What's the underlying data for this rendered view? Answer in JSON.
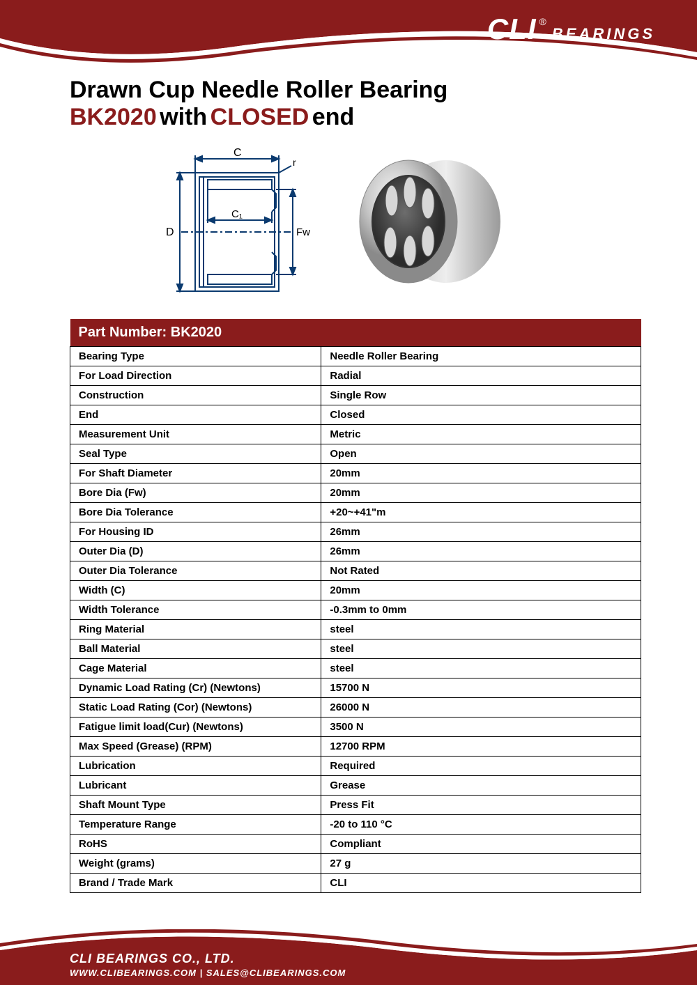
{
  "brand": {
    "logo_main": "CLI",
    "logo_reg": "®",
    "logo_sub": "BEARINGS",
    "color_primary": "#8a1c1c",
    "color_white": "#ffffff"
  },
  "title": {
    "line1": "Drawn Cup Needle Roller Bearing",
    "part": "BK2020",
    "with": "with",
    "closed": "CLOSED",
    "end": "end"
  },
  "diagram": {
    "labels": {
      "C": "C",
      "C1": "C₁",
      "D": "D",
      "Fw": "Fw",
      "r": "r"
    },
    "stroke": "#0b3a6f",
    "stroke_width": 2
  },
  "table": {
    "header": "Part Number: BK2020",
    "rows": [
      [
        "Bearing Type",
        "Needle Roller Bearing"
      ],
      [
        "For Load Direction",
        "Radial"
      ],
      [
        "Construction",
        "Single Row"
      ],
      [
        "End",
        "Closed"
      ],
      [
        "Measurement Unit",
        "Metric"
      ],
      [
        "Seal Type",
        "Open"
      ],
      [
        "For Shaft Diameter",
        "20mm"
      ],
      [
        "Bore Dia (Fw)",
        "20mm"
      ],
      [
        "Bore Dia Tolerance",
        "+20~+41\"m"
      ],
      [
        "For Housing ID",
        "26mm"
      ],
      [
        "Outer Dia (D)",
        "26mm"
      ],
      [
        "Outer Dia Tolerance",
        "Not Rated"
      ],
      [
        "Width (C)",
        "20mm"
      ],
      [
        "Width Tolerance",
        "-0.3mm to 0mm"
      ],
      [
        "Ring Material",
        "steel"
      ],
      [
        "Ball Material",
        "steel"
      ],
      [
        "Cage Material",
        "steel"
      ],
      [
        "Dynamic Load Rating (Cr) (Newtons)",
        "15700 N"
      ],
      [
        "Static Load Rating (Cor) (Newtons)",
        "26000 N"
      ],
      [
        "Fatigue limit load(Cur) (Newtons)",
        "3500 N"
      ],
      [
        "Max Speed (Grease) (RPM)",
        "12700 RPM"
      ],
      [
        "Lubrication",
        "Required"
      ],
      [
        "Lubricant",
        "Grease"
      ],
      [
        "Shaft Mount Type",
        "Press Fit"
      ],
      [
        "Temperature Range",
        "-20 to 110 °C"
      ],
      [
        "RoHS",
        "Compliant"
      ],
      [
        "Weight (grams)",
        "27 g"
      ],
      [
        "Brand / Trade Mark",
        "CLI"
      ]
    ]
  },
  "footer": {
    "company": "CLI BEARINGS CO., LTD.",
    "contact": "WWW.CLIBEARINGS.COM   |   SALES@CLIBEARINGS.COM"
  }
}
